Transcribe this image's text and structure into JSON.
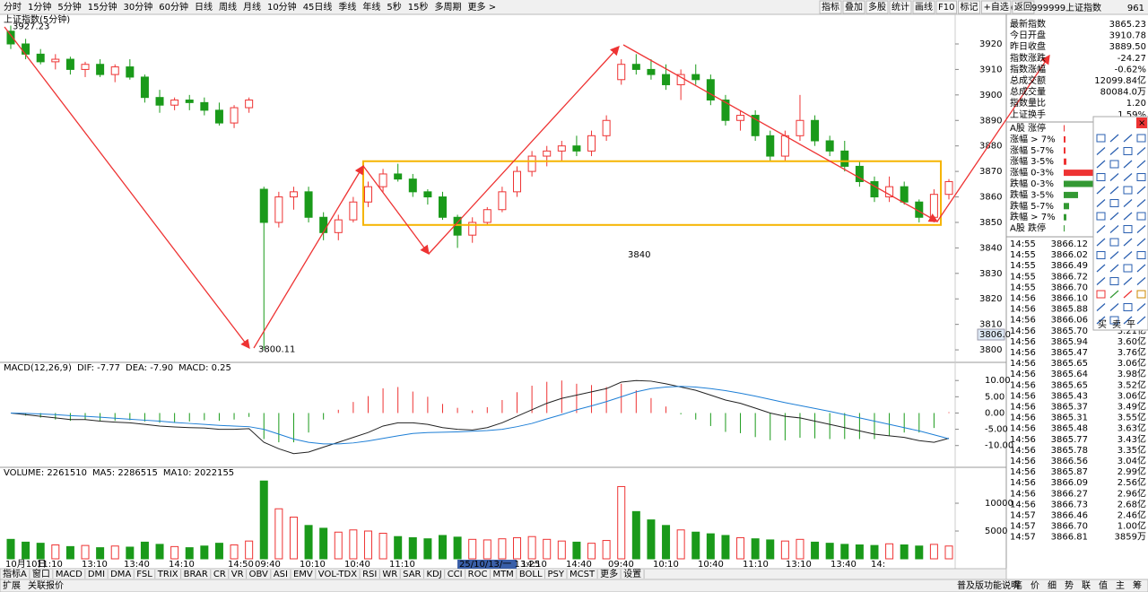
{
  "toolbar": {
    "tabs": [
      "分时",
      "1分钟",
      "5分钟",
      "15分钟",
      "30分钟",
      "60分钟",
      "日线",
      "周线",
      "月线",
      "10分钟",
      "45日线",
      "季线",
      "年线",
      "5秒",
      "15秒",
      "多周期",
      "更多 >"
    ],
    "active_tab": 2,
    "buttons": [
      "指标",
      "叠加",
      "多股",
      "统计",
      "画线",
      "F10",
      "标记",
      "+自选",
      "返回"
    ]
  },
  "chart": {
    "title": "上证指数(5分钟)",
    "ylim": [
      3795.8,
      3930.2
    ],
    "yticks": [
      3800,
      3810,
      3820,
      3830,
      3840,
      3850,
      3860,
      3870,
      3880,
      3890,
      3900,
      3910,
      3920
    ],
    "candles": [
      [
        3925,
        3927.23,
        3918,
        3920
      ],
      [
        3920,
        3922,
        3914,
        3916
      ],
      [
        3916,
        3918,
        3912,
        3913
      ],
      [
        3913,
        3916,
        3910,
        3914
      ],
      [
        3914,
        3915,
        3908,
        3910
      ],
      [
        3910,
        3913,
        3907,
        3912
      ],
      [
        3912,
        3914,
        3907,
        3908
      ],
      [
        3908,
        3912,
        3905,
        3911
      ],
      [
        3911,
        3914,
        3906,
        3907
      ],
      [
        3907,
        3908,
        3897,
        3899
      ],
      [
        3899,
        3902,
        3893,
        3896
      ],
      [
        3896,
        3899,
        3894,
        3898
      ],
      [
        3898,
        3900,
        3894,
        3897
      ],
      [
        3897,
        3899,
        3892,
        3894
      ],
      [
        3894,
        3897,
        3888,
        3889
      ],
      [
        3889,
        3896,
        3887,
        3895
      ],
      [
        3895,
        3899,
        3893,
        3898
      ],
      [
        3863,
        3864,
        3800.11,
        3850
      ],
      [
        3850,
        3862,
        3848,
        3860
      ],
      [
        3860,
        3864,
        3855,
        3862
      ],
      [
        3862,
        3864,
        3850,
        3852
      ],
      [
        3852,
        3854,
        3843,
        3846
      ],
      [
        3846,
        3853,
        3843,
        3851
      ],
      [
        3851,
        3860,
        3850,
        3858
      ],
      [
        3858,
        3866,
        3856,
        3864
      ],
      [
        3864,
        3871,
        3862,
        3869
      ],
      [
        3869,
        3873,
        3866,
        3867
      ],
      [
        3867,
        3869,
        3860,
        3862
      ],
      [
        3862,
        3863,
        3857,
        3860
      ],
      [
        3860,
        3862,
        3851,
        3852
      ],
      [
        3852,
        3853,
        3840,
        3845
      ],
      [
        3845,
        3852,
        3842,
        3850
      ],
      [
        3850,
        3856,
        3849,
        3855
      ],
      [
        3855,
        3864,
        3854,
        3862
      ],
      [
        3862,
        3872,
        3860,
        3870
      ],
      [
        3870,
        3878,
        3868,
        3876
      ],
      [
        3876,
        3880,
        3872,
        3878
      ],
      [
        3878,
        3882,
        3874,
        3880
      ],
      [
        3880,
        3884,
        3876,
        3878
      ],
      [
        3878,
        3886,
        3876,
        3884
      ],
      [
        3884,
        3892,
        3882,
        3890
      ],
      [
        3906,
        3914,
        3904,
        3912
      ],
      [
        3912,
        3916,
        3908,
        3910
      ],
      [
        3910,
        3914,
        3906,
        3908
      ],
      [
        3908,
        3912,
        3902,
        3904
      ],
      [
        3904,
        3910,
        3898,
        3908
      ],
      [
        3908,
        3912,
        3904,
        3906
      ],
      [
        3906,
        3908,
        3896,
        3898
      ],
      [
        3898,
        3900,
        3888,
        3890
      ],
      [
        3890,
        3894,
        3886,
        3892
      ],
      [
        3892,
        3894,
        3882,
        3884
      ],
      [
        3884,
        3886,
        3874,
        3876
      ],
      [
        3876,
        3886,
        3874,
        3884
      ],
      [
        3884,
        3900,
        3882,
        3890
      ],
      [
        3890,
        3892,
        3880,
        3882
      ],
      [
        3882,
        3884,
        3876,
        3878
      ],
      [
        3878,
        3882,
        3870,
        3872
      ],
      [
        3872,
        3874,
        3864,
        3866
      ],
      [
        3866,
        3868,
        3858,
        3860
      ],
      [
        3860,
        3868,
        3858,
        3864
      ],
      [
        3864,
        3866,
        3857,
        3858
      ],
      [
        3858,
        3859,
        3850,
        3852
      ],
      [
        3852,
        3863,
        3850,
        3861
      ],
      [
        3861,
        3867,
        3859,
        3866
      ]
    ],
    "box": [
      3874,
      3849
    ],
    "annotation": "3840",
    "price_tag": {
      "value": 3806,
      "label": "3806.0"
    },
    "x_labels": [
      "10月10日",
      "11:10",
      "13:10",
      "13:40",
      "14:10",
      "14:50",
      "09:40",
      "10:10",
      "10:40",
      "11:10",
      "14:10",
      "14:40",
      "09:40",
      "10:10",
      "10:40",
      "11:10",
      "13:10",
      "13:40",
      "14:"
    ],
    "cursor_label": "25/10/13/一 13:25"
  },
  "macd": {
    "legend": [
      "MACD(12,26,9)",
      "DIF: -7.77",
      "DEA: -7.90",
      "MACD: 0.25"
    ],
    "ylim": [
      -16.7,
      15.3
    ],
    "yticks": [
      {
        "value": -10,
        "label": "-10.00"
      },
      {
        "value": -5,
        "label": "-5.00"
      },
      {
        "value": 0,
        "label": "0.00"
      },
      {
        "value": 5,
        "label": "5.00"
      },
      {
        "value": 10,
        "label": "10.00"
      }
    ],
    "dif": [
      0,
      -0.5,
      -1,
      -1.5,
      -2,
      -2,
      -2.5,
      -2.8,
      -3,
      -3.5,
      -4,
      -4.3,
      -4.5,
      -4.6,
      -5,
      -5,
      -4.8,
      -9,
      -11,
      -12.5,
      -12,
      -10.5,
      -9,
      -7.5,
      -6,
      -4,
      -3,
      -3,
      -3.5,
      -4.5,
      -5,
      -5.2,
      -4.5,
      -3,
      -1,
      1,
      3,
      4.5,
      5.5,
      6.5,
      7.5,
      9.5,
      10,
      9.8,
      9,
      8,
      7,
      5.5,
      4,
      3,
      1.5,
      0,
      -1,
      -1.5,
      -2.5,
      -3.5,
      -4.5,
      -5.5,
      -6.5,
      -7,
      -7.5,
      -8.5,
      -9,
      -7.77
    ],
    "dea": [
      0,
      -0.1,
      -0.3,
      -0.5,
      -0.8,
      -1,
      -1.3,
      -1.6,
      -1.9,
      -2.2,
      -2.5,
      -2.9,
      -3.2,
      -3.5,
      -3.8,
      -4,
      -4.2,
      -5,
      -6.5,
      -8,
      -9,
      -9.5,
      -9.5,
      -9.2,
      -8.6,
      -7.8,
      -7,
      -6.3,
      -6,
      -5.9,
      -5.8,
      -5.6,
      -5.4,
      -5,
      -4.2,
      -3.2,
      -1.8,
      -0.5,
      1,
      2.2,
      3.5,
      5,
      6.5,
      7.5,
      8,
      8.2,
      8,
      7.5,
      6.9,
      6.1,
      5.2,
      4.2,
      3.2,
      2.3,
      1.4,
      0.5,
      -0.5,
      -1.5,
      -2.5,
      -3.5,
      -4.5,
      -5.5,
      -6.7,
      -7.9
    ],
    "bars": [
      0,
      -0.8,
      -1.4,
      -2,
      -2.4,
      -2,
      -2.4,
      -2.4,
      -2.2,
      -2.6,
      -3,
      -2.8,
      -2.6,
      -2.2,
      -2.4,
      -2,
      -1.2,
      -8,
      -9,
      -9,
      -6,
      -2,
      1,
      3.4,
      5.2,
      7.6,
      8,
      6.6,
      5,
      2.8,
      1.6,
      0.8,
      1.8,
      4,
      6.4,
      8.4,
      9.6,
      10,
      9,
      8.6,
      8,
      9,
      7,
      4.6,
      2,
      -0.4,
      -2,
      -4,
      -5.8,
      -6.2,
      -7.4,
      -8.4,
      -8.4,
      -7.6,
      -7.8,
      -8,
      -8,
      -8,
      -8,
      -7,
      -6,
      -6,
      -4.6,
      0.25
    ]
  },
  "volume": {
    "legend": [
      "VOLUME: 2261510",
      "MA5: 2286515",
      "MA10: 2022155"
    ],
    "ylim": [
      0,
      16300
    ],
    "yticks": [
      5000,
      10000
    ],
    "values": [
      3500,
      3000,
      2800,
      2500,
      2200,
      2400,
      2000,
      2300,
      2100,
      3000,
      2600,
      2200,
      2000,
      2300,
      2800,
      2500,
      3200,
      14000,
      9000,
      7500,
      6000,
      5500,
      4800,
      5200,
      5000,
      4600,
      4000,
      3800,
      3600,
      4200,
      3900,
      3500,
      3400,
      3600,
      3800,
      4000,
      3500,
      3200,
      3000,
      2800,
      3300,
      13000,
      8500,
      7000,
      6000,
      5200,
      4800,
      4500,
      4200,
      3800,
      3600,
      3400,
      3200,
      3500,
      3000,
      2800,
      2600,
      2500,
      2400,
      2700,
      2500,
      2300,
      2600,
      2300
    ]
  },
  "indicator_tabs": [
    "指标A",
    "窗口",
    "MACD",
    "DMI",
    "DMA",
    "FSL",
    "TRIX",
    "BRAR",
    "CR",
    "VR",
    "OBV",
    "ASI",
    "EMV",
    "VOL-TDX",
    "RSI",
    "WR",
    "SAR",
    "KDJ",
    "CCI",
    "ROC",
    "MTM",
    "BOLL",
    "PSY",
    "MCST",
    "更多",
    "设置"
  ],
  "status_bar": {
    "left": [
      "扩展",
      "关联报价"
    ],
    "help": "普及版功能说明",
    "right": [
      "笔",
      "价",
      "细",
      "势",
      "联",
      "值",
      "主",
      "筹"
    ]
  },
  "side": {
    "code": "999999",
    "name": "上证指数",
    "badge": "961",
    "quote": [
      {
        "label": "最新指数",
        "value": "3865.23",
        "color": "#000"
      },
      {
        "label": "今日开盘",
        "value": "3910.78",
        "color": "#e00"
      },
      {
        "label": "昨日收盘",
        "value": "3889.50",
        "color": "#000"
      },
      {
        "label": "指数涨跌",
        "value": "-24.27",
        "color": "#080"
      },
      {
        "label": "指数涨幅",
        "value": "-0.62%",
        "color": "#080"
      },
      {
        "label": "总成交额",
        "value": "12099.84亿",
        "color": "#000"
      },
      {
        "label": "总成交量",
        "value": "80084.0万",
        "color": "#000"
      },
      {
        "label": "指数量比",
        "value": "1.20",
        "color": "#e00"
      },
      {
        "label": "上证换手",
        "value": "1.59%",
        "color": "#000"
      }
    ],
    "distribution": [
      {
        "label": "A股 涨停",
        "bar": 1,
        "color": "#e33"
      },
      {
        "label": "涨幅 > 7%",
        "bar": 2,
        "color": "#e33"
      },
      {
        "label": "涨幅 5-7%",
        "bar": 2,
        "color": "#e33"
      },
      {
        "label": "涨幅 3-5%",
        "bar": 3,
        "color": "#e33"
      },
      {
        "label": "涨幅 0-3%",
        "bar": 34,
        "color": "#e33"
      },
      {
        "label": "跌幅 0-3%",
        "bar": 34,
        "color": "#393"
      },
      {
        "label": "跌幅 3-5%",
        "bar": 16,
        "color": "#393"
      },
      {
        "label": "跌幅 5-7%",
        "bar": 6,
        "color": "#393"
      },
      {
        "label": "跌幅 > 7%",
        "bar": 3,
        "color": "#393"
      },
      {
        "label": "A股 跌停",
        "bar": 1,
        "color": "#393"
      }
    ],
    "trades": [
      {
        "time": "14:55",
        "price": "3866.12"
      },
      {
        "time": "14:55",
        "price": "3866.02"
      },
      {
        "time": "14:55",
        "price": "3866.49"
      },
      {
        "time": "14:55",
        "price": "3866.72"
      },
      {
        "time": "14:55",
        "price": "3866.70"
      },
      {
        "time": "14:56",
        "price": "3866.10"
      },
      {
        "time": "14:56",
        "price": "3865.88"
      },
      {
        "time": "14:56",
        "price": "3866.06"
      },
      {
        "time": "14:56",
        "price": "3865.70",
        "vol": "3.21亿"
      },
      {
        "time": "14:56",
        "price": "3865.94",
        "vol": "3.60亿"
      },
      {
        "time": "14:56",
        "price": "3865.47",
        "vol": "3.76亿"
      },
      {
        "time": "14:56",
        "price": "3865.65",
        "vol": "3.06亿"
      },
      {
        "time": "14:56",
        "price": "3865.64",
        "vol": "3.98亿"
      },
      {
        "time": "14:56",
        "price": "3865.65",
        "vol": "3.52亿"
      },
      {
        "time": "14:56",
        "price": "3865.43",
        "vol": "3.06亿"
      },
      {
        "time": "14:56",
        "price": "3865.37",
        "vol": "3.49亿"
      },
      {
        "time": "14:56",
        "price": "3865.31",
        "vol": "3.55亿"
      },
      {
        "time": "14:56",
        "price": "3865.48",
        "vol": "3.63亿"
      },
      {
        "time": "14:56",
        "price": "3865.77",
        "vol": "3.43亿"
      },
      {
        "time": "14:56",
        "price": "3865.78",
        "vol": "3.35亿"
      },
      {
        "time": "14:56",
        "price": "3866.56",
        "vol": "3.04亿"
      },
      {
        "time": "14:56",
        "price": "3865.87",
        "vol": "2.99亿"
      },
      {
        "time": "14:56",
        "price": "3866.09",
        "vol": "2.56亿"
      },
      {
        "time": "14:56",
        "price": "3866.27",
        "vol": "2.96亿"
      },
      {
        "time": "14:56",
        "price": "3866.73",
        "vol": "2.68亿"
      },
      {
        "time": "14:57",
        "price": "3866.46",
        "vol": "2.46亿"
      },
      {
        "time": "14:57",
        "price": "3866.70",
        "vol": "1.00亿"
      },
      {
        "time": "14:57",
        "price": "3866.81",
        "vol": "3859万"
      }
    ]
  },
  "tool_panel": {
    "close": "×",
    "labels": [
      "买",
      "卖",
      "平"
    ]
  }
}
